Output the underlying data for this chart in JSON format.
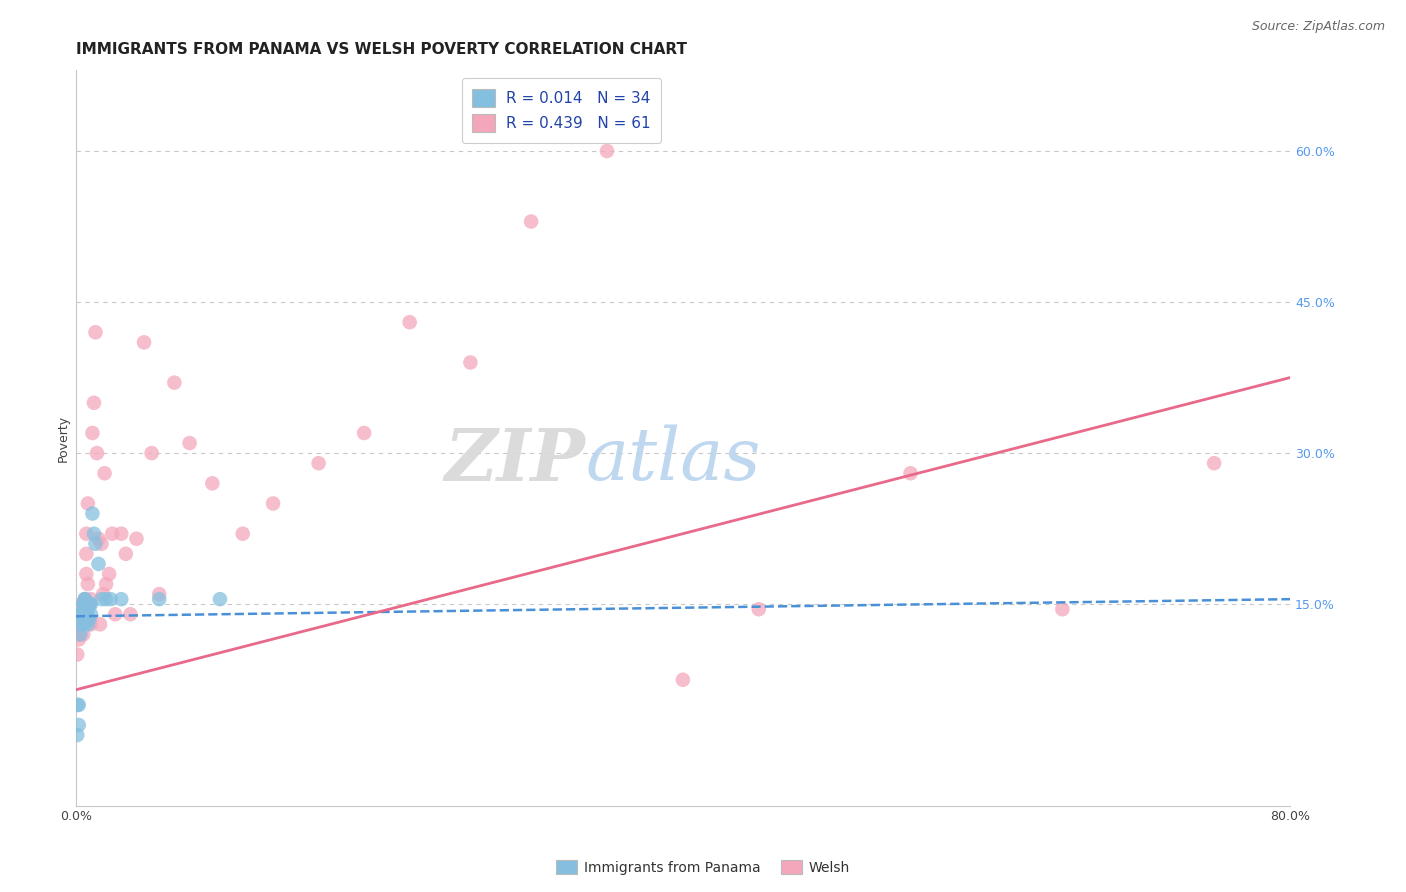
{
  "title": "IMMIGRANTS FROM PANAMA VS WELSH POVERTY CORRELATION CHART",
  "source": "Source: ZipAtlas.com",
  "ylabel": "Poverty",
  "watermark_zip": "ZIP",
  "watermark_atlas": "atlas",
  "right_yticks": [
    15.0,
    30.0,
    45.0,
    60.0
  ],
  "xmin": 0.0,
  "xmax": 0.8,
  "ymin": -0.05,
  "ymax": 0.68,
  "legend_r1": "R = 0.014   N = 34",
  "legend_r2": "R = 0.439   N = 61",
  "color_panama": "#85bfdf",
  "color_welsh": "#f4a7bb",
  "color_panama_line": "#4a90d9",
  "color_welsh_line": "#e8698a",
  "panama_scatter_x": [
    0.001,
    0.001,
    0.002,
    0.002,
    0.003,
    0.003,
    0.003,
    0.004,
    0.004,
    0.005,
    0.005,
    0.005,
    0.005,
    0.006,
    0.006,
    0.006,
    0.007,
    0.007,
    0.008,
    0.008,
    0.009,
    0.009,
    0.01,
    0.01,
    0.011,
    0.012,
    0.013,
    0.015,
    0.017,
    0.02,
    0.023,
    0.03,
    0.055,
    0.095
  ],
  "panama_scatter_y": [
    0.05,
    0.02,
    0.05,
    0.03,
    0.14,
    0.14,
    0.12,
    0.14,
    0.13,
    0.15,
    0.15,
    0.14,
    0.13,
    0.155,
    0.155,
    0.14,
    0.15,
    0.14,
    0.145,
    0.13,
    0.15,
    0.135,
    0.15,
    0.14,
    0.24,
    0.22,
    0.21,
    0.19,
    0.155,
    0.155,
    0.155,
    0.155,
    0.155,
    0.155
  ],
  "welsh_scatter_x": [
    0.001,
    0.001,
    0.002,
    0.002,
    0.003,
    0.003,
    0.003,
    0.004,
    0.004,
    0.005,
    0.005,
    0.005,
    0.006,
    0.006,
    0.006,
    0.006,
    0.007,
    0.007,
    0.007,
    0.008,
    0.008,
    0.009,
    0.009,
    0.01,
    0.01,
    0.011,
    0.012,
    0.013,
    0.014,
    0.015,
    0.016,
    0.017,
    0.018,
    0.019,
    0.02,
    0.022,
    0.024,
    0.026,
    0.03,
    0.033,
    0.036,
    0.04,
    0.045,
    0.05,
    0.055,
    0.065,
    0.075,
    0.09,
    0.11,
    0.13,
    0.16,
    0.19,
    0.22,
    0.26,
    0.3,
    0.35,
    0.4,
    0.45,
    0.55,
    0.65,
    0.75
  ],
  "welsh_scatter_y": [
    0.12,
    0.1,
    0.13,
    0.115,
    0.14,
    0.13,
    0.12,
    0.15,
    0.135,
    0.15,
    0.13,
    0.12,
    0.155,
    0.15,
    0.145,
    0.13,
    0.22,
    0.2,
    0.18,
    0.25,
    0.17,
    0.15,
    0.135,
    0.155,
    0.13,
    0.32,
    0.35,
    0.42,
    0.3,
    0.215,
    0.13,
    0.21,
    0.16,
    0.28,
    0.17,
    0.18,
    0.22,
    0.14,
    0.22,
    0.2,
    0.14,
    0.215,
    0.41,
    0.3,
    0.16,
    0.37,
    0.31,
    0.27,
    0.22,
    0.25,
    0.29,
    0.32,
    0.43,
    0.39,
    0.53,
    0.6,
    0.075,
    0.145,
    0.28,
    0.145,
    0.29
  ],
  "panama_trend_x": [
    0.0,
    0.8
  ],
  "panama_trend_y": [
    0.138,
    0.155
  ],
  "welsh_trend_x": [
    0.0,
    0.8
  ],
  "welsh_trend_y": [
    0.065,
    0.375
  ],
  "background_color": "#ffffff",
  "grid_color": "#c8c8c8",
  "title_fontsize": 11,
  "axis_fontsize": 9,
  "legend_fontsize": 11,
  "source_fontsize": 9
}
